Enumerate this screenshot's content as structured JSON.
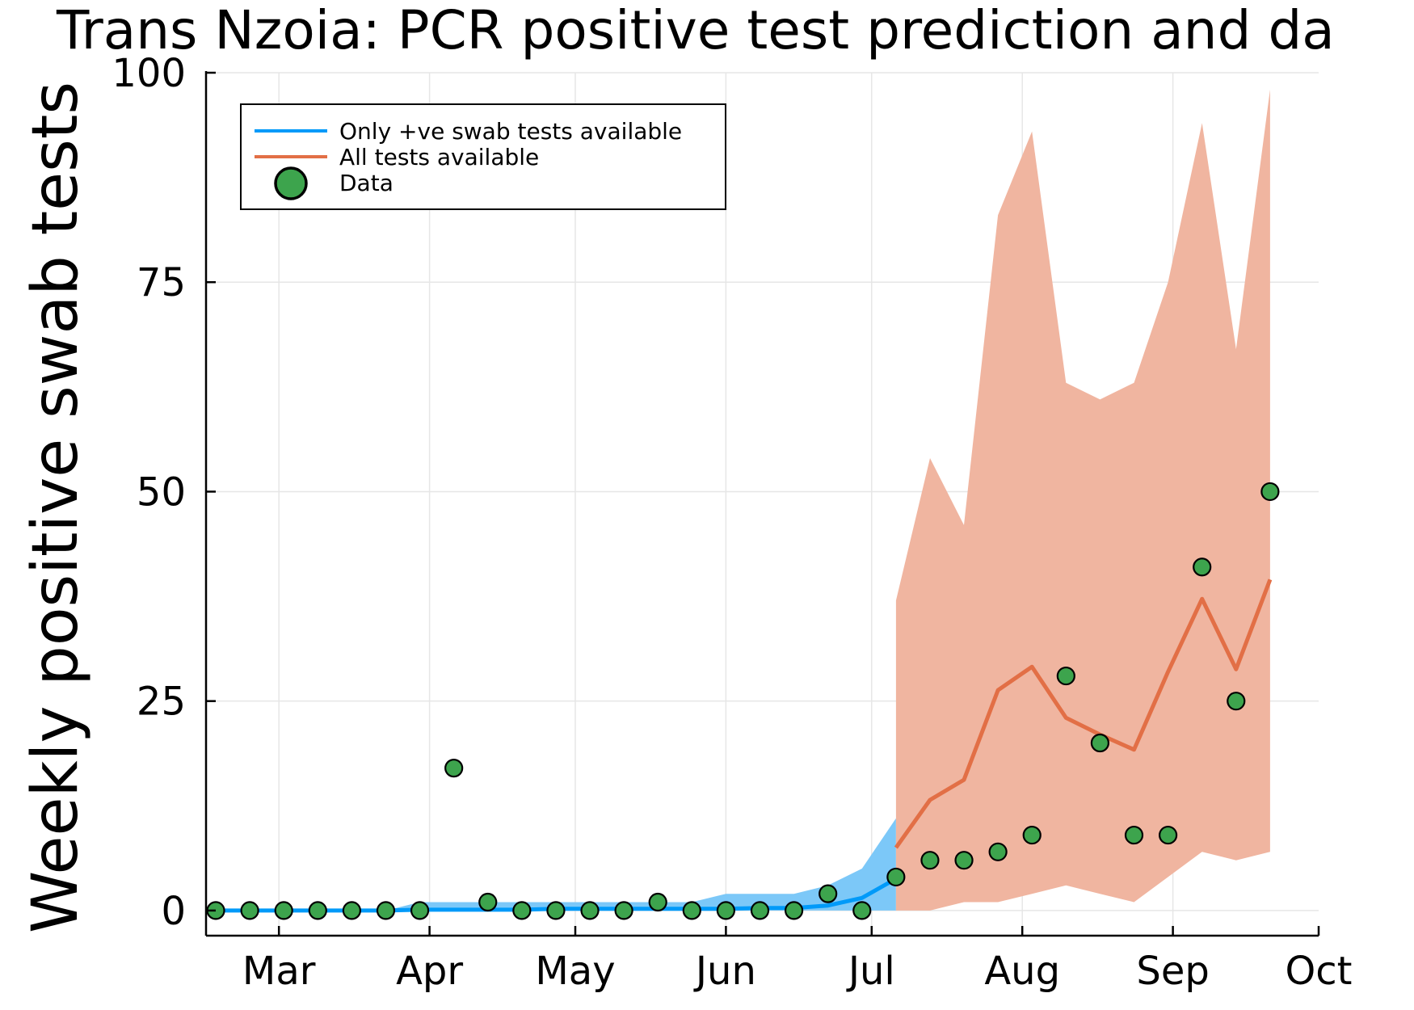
{
  "chart_data": {
    "type": "line",
    "title": "Trans Nzoia: PCR positive test prediction and da",
    "ylabel": "Weekly positive swab tests",
    "xlabel": "",
    "x_axis": {
      "type": "date",
      "range": [
        "2020-02-15",
        "2020-10-01"
      ],
      "ticks": [
        {
          "label": "Mar",
          "date": "2020-03-01"
        },
        {
          "label": "Apr",
          "date": "2020-04-01"
        },
        {
          "label": "May",
          "date": "2020-05-01"
        },
        {
          "label": "Jun",
          "date": "2020-06-01"
        },
        {
          "label": "Jul",
          "date": "2020-07-01"
        },
        {
          "label": "Aug",
          "date": "2020-08-01"
        },
        {
          "label": "Sep",
          "date": "2020-09-01"
        },
        {
          "label": "Oct",
          "date": "2020-10-01"
        }
      ]
    },
    "y_axis": {
      "range": [
        -3,
        100
      ],
      "ticks": [
        0,
        25,
        50,
        75,
        100
      ]
    },
    "grid": true,
    "legend_position": "top-left",
    "series": [
      {
        "name": "Only +ve swab tests available",
        "kind": "line_with_band",
        "color": "#009af9",
        "band_color": "#7cc8f8",
        "x": [
          "2020-02-17",
          "2020-02-24",
          "2020-03-02",
          "2020-03-09",
          "2020-03-16",
          "2020-03-23",
          "2020-03-30",
          "2020-04-06",
          "2020-04-13",
          "2020-04-20",
          "2020-04-27",
          "2020-05-04",
          "2020-05-11",
          "2020-05-18",
          "2020-05-25",
          "2020-06-01",
          "2020-06-08",
          "2020-06-15",
          "2020-06-22",
          "2020-06-29",
          "2020-07-06"
        ],
        "y": [
          0,
          0,
          0,
          0,
          0,
          0,
          0.1,
          0.1,
          0.1,
          0.1,
          0.2,
          0.2,
          0.2,
          0.2,
          0.2,
          0.2,
          0.3,
          0.3,
          0.6,
          1.5,
          3.8
        ],
        "lower": [
          0,
          0,
          0,
          0,
          0,
          0,
          0,
          0,
          0,
          0,
          0,
          0,
          0,
          0,
          0,
          0,
          0,
          0,
          0,
          0,
          0
        ],
        "upper": [
          0,
          0,
          0,
          0,
          0,
          0,
          1,
          1,
          1,
          1,
          1,
          1,
          1,
          1,
          1,
          2,
          2,
          2,
          3,
          5,
          11
        ]
      },
      {
        "name": "All tests available",
        "kind": "line_with_band",
        "color": "#e26f46",
        "band_color": "#f0b5a0",
        "x": [
          "2020-07-06",
          "2020-07-13",
          "2020-07-20",
          "2020-07-27",
          "2020-08-03",
          "2020-08-10",
          "2020-08-17",
          "2020-08-24",
          "2020-08-31",
          "2020-09-07",
          "2020-09-14",
          "2020-09-21"
        ],
        "y": [
          7.5,
          13.2,
          15.6,
          26.3,
          29.1,
          23,
          21,
          19.2,
          28.5,
          37.2,
          28.8,
          39.5
        ],
        "lower": [
          0,
          0,
          1,
          1,
          2,
          3,
          2,
          1,
          4,
          7,
          6,
          7
        ],
        "upper": [
          37,
          54,
          46,
          83,
          93,
          63,
          61,
          63,
          75,
          94,
          67,
          98
        ]
      },
      {
        "name": "Data",
        "kind": "scatter",
        "color": "#3da44d",
        "x": [
          "2020-02-17",
          "2020-02-24",
          "2020-03-02",
          "2020-03-09",
          "2020-03-16",
          "2020-03-23",
          "2020-03-30",
          "2020-04-06",
          "2020-04-13",
          "2020-04-20",
          "2020-04-27",
          "2020-05-04",
          "2020-05-11",
          "2020-05-18",
          "2020-05-25",
          "2020-06-01",
          "2020-06-08",
          "2020-06-15",
          "2020-06-22",
          "2020-06-29",
          "2020-07-06",
          "2020-07-13",
          "2020-07-20",
          "2020-07-27",
          "2020-08-03",
          "2020-08-10",
          "2020-08-17",
          "2020-08-24",
          "2020-08-31",
          "2020-09-07",
          "2020-09-14",
          "2020-09-21"
        ],
        "y": [
          0,
          0,
          0,
          0,
          0,
          0,
          0,
          17,
          1,
          0,
          0,
          0,
          0,
          1,
          0,
          0,
          0,
          0,
          2,
          0,
          4,
          6,
          6,
          7,
          9,
          28,
          20,
          9,
          9,
          41,
          25,
          50
        ]
      }
    ]
  }
}
